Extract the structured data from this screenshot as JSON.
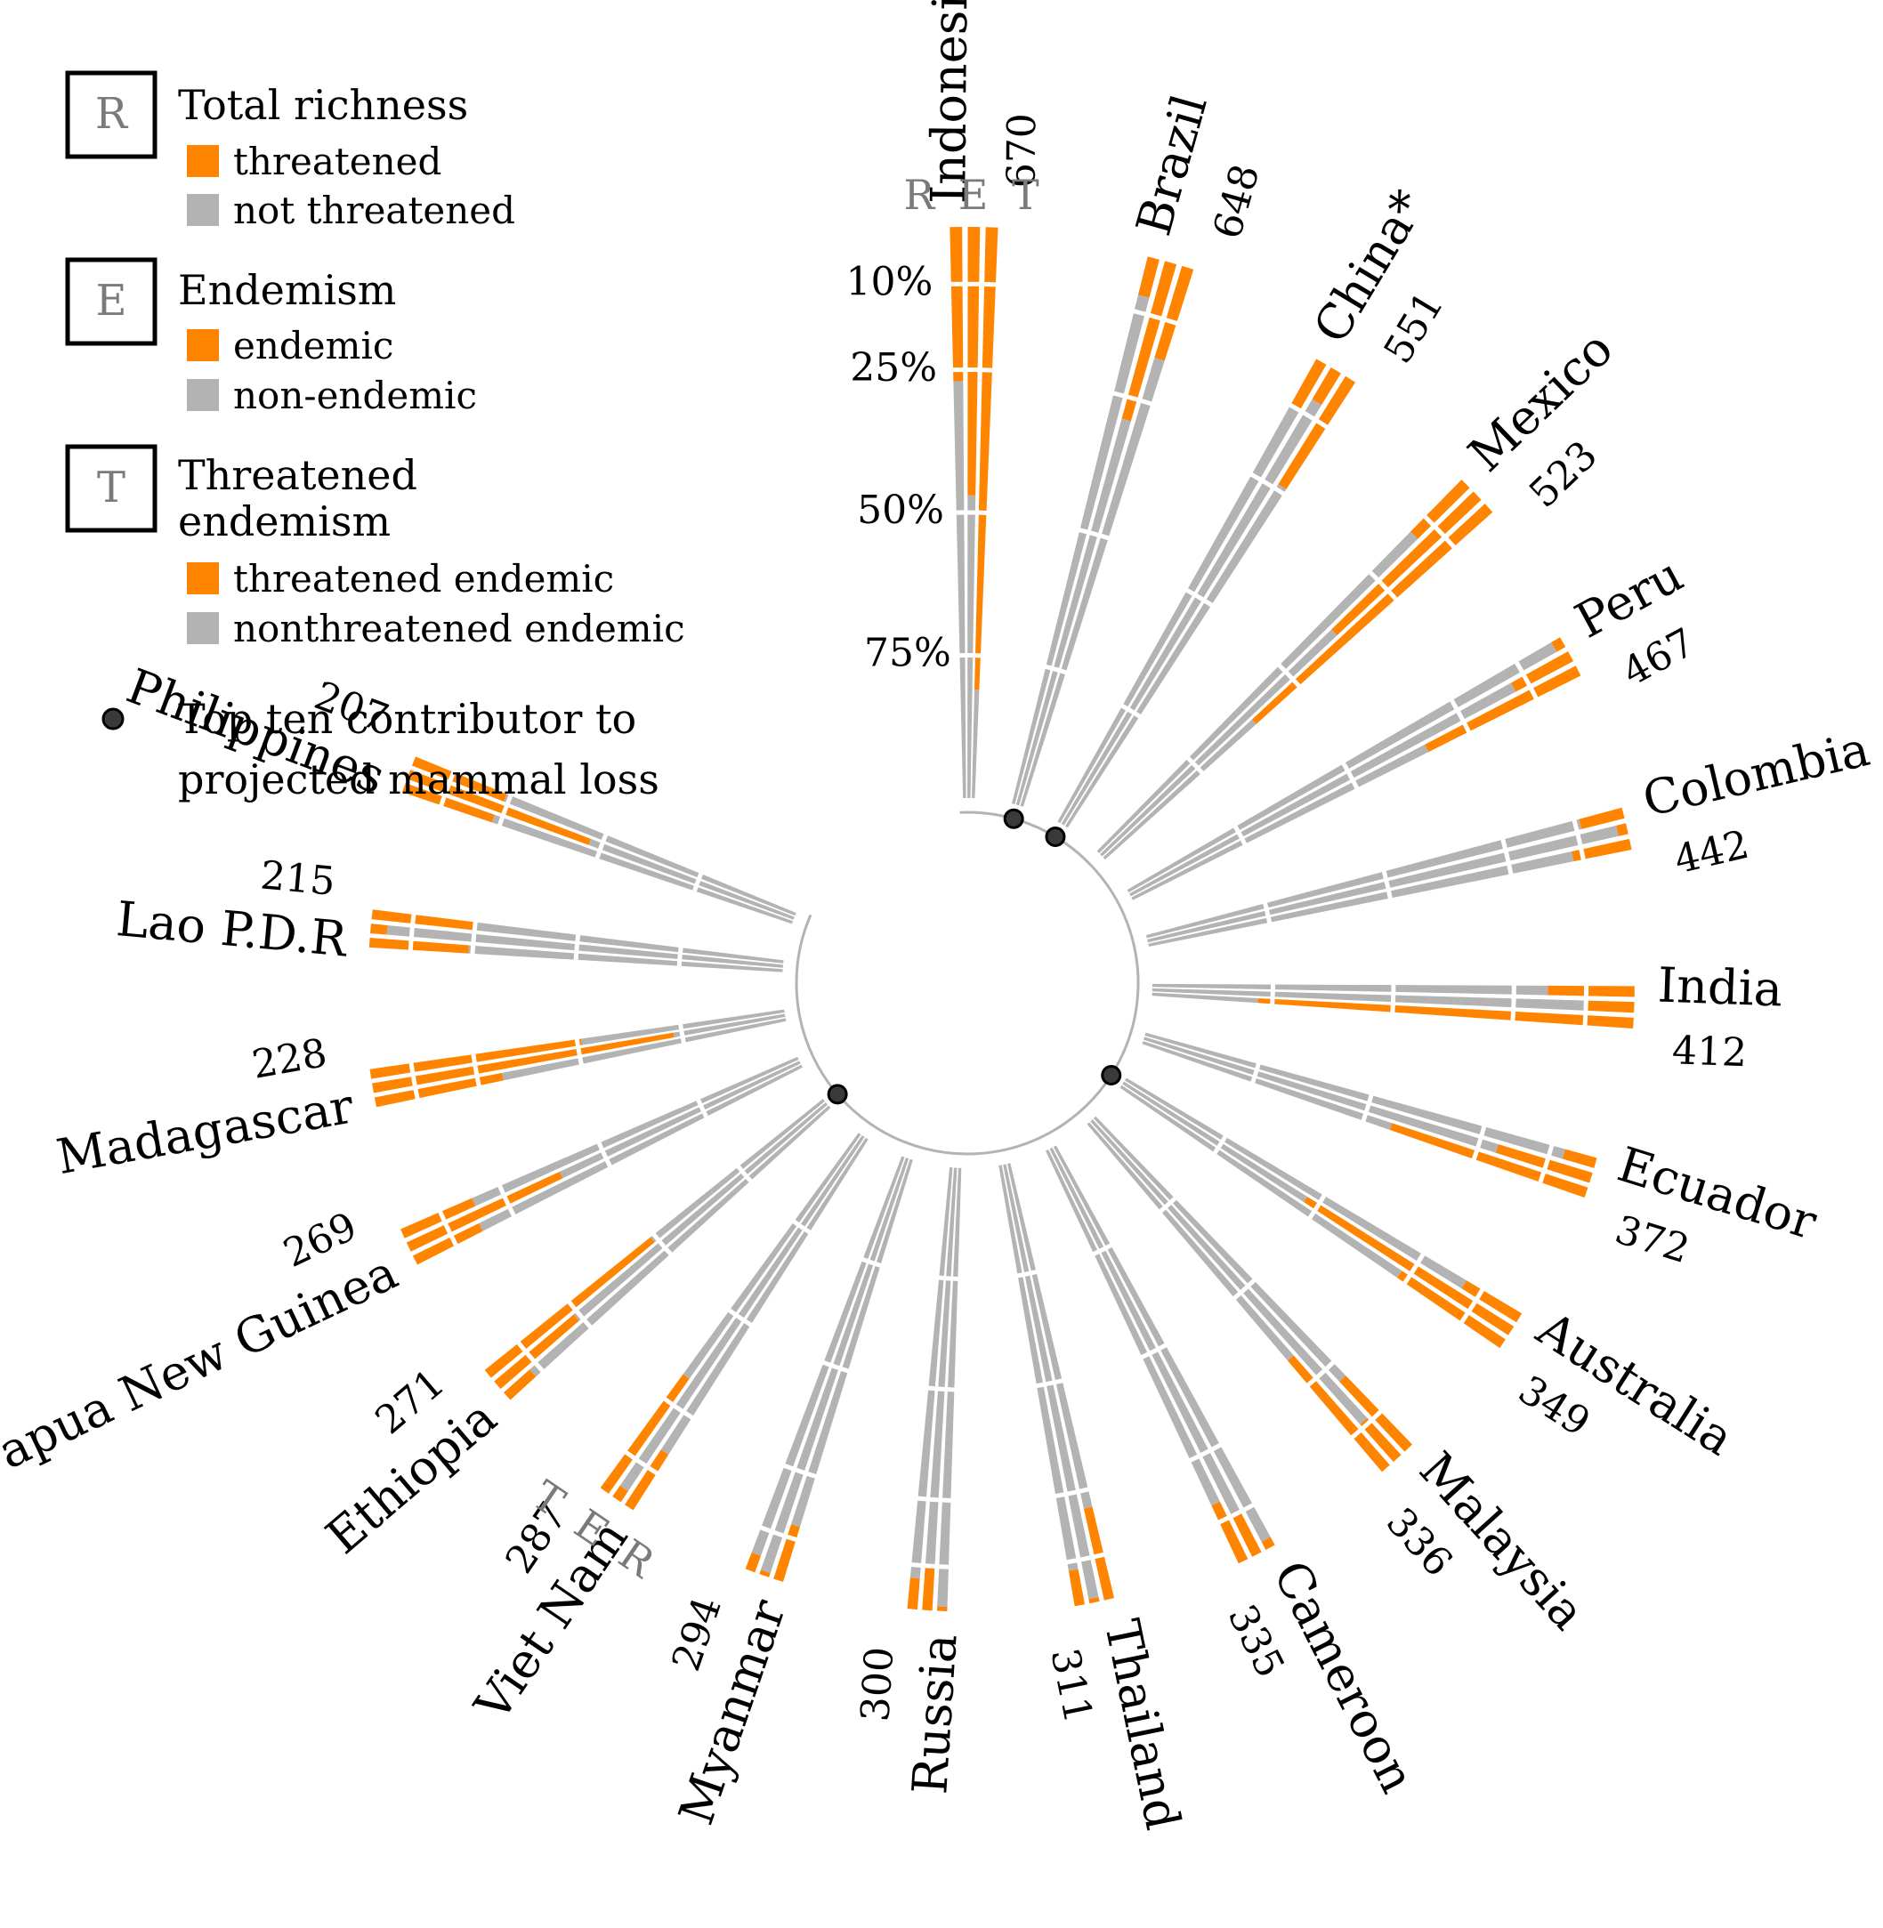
{
  "colors": {
    "highlight": "#ff8400",
    "base": "#b3b3b3",
    "legend_box_border": "#000000",
    "legend_letter": "#7a7a7a",
    "center_circle": "#b3b3b3",
    "marker": "#3a3a3a"
  },
  "legend": {
    "groups": [
      {
        "letter": "R",
        "title": "Total richness",
        "items": [
          {
            "label": "threatened",
            "color": "#ff8400"
          },
          {
            "label": "not threatened",
            "color": "#b3b3b3"
          }
        ]
      },
      {
        "letter": "E",
        "title": "Endemism",
        "items": [
          {
            "label": "endemic",
            "color": "#ff8400"
          },
          {
            "label": "non-endemic",
            "color": "#b3b3b3"
          }
        ]
      },
      {
        "letter": "T",
        "title": "Threatened\nendemism",
        "items": [
          {
            "label": "threatened endemic",
            "color": "#ff8400"
          },
          {
            "label": "nonthreatened endemic",
            "color": "#b3b3b3"
          }
        ]
      }
    ],
    "marker_label": "Top ten contributor to\nprojected mammal loss"
  },
  "chart_data": {
    "type": "radial-stacked-bar",
    "bar_codes": [
      "R",
      "E",
      "T"
    ],
    "bar_code_names": {
      "R": "Total richness",
      "E": "Endemism",
      "T": "Threatened endemism"
    },
    "percent_scale": {
      "ticks": [
        {
          "label": "10%",
          "value": 10
        },
        {
          "label": "25%",
          "value": 25
        },
        {
          "label": "50%",
          "value": 50
        },
        {
          "label": "75%",
          "value": 75
        }
      ],
      "max": 100
    },
    "group_labels_top": "R E T",
    "group_labels_bottom": "T E R",
    "countries": [
      {
        "name": "Indonesia",
        "count": "670",
        "R": 27,
        "E": 47,
        "T": 81,
        "top_ten": false
      },
      {
        "name": "Brazil",
        "count": "648",
        "R": 7,
        "E": 29,
        "T": 17,
        "top_ten": true
      },
      {
        "name": "China*",
        "count": "551",
        "R": 10,
        "E": 7,
        "T": 24,
        "top_ten": true
      },
      {
        "name": "Mexico",
        "count": "523",
        "R": 14,
        "E": 38,
        "T": 61,
        "top_ten": false
      },
      {
        "name": "Peru",
        "count": "467",
        "R": 2,
        "E": 13,
        "T": 34,
        "top_ten": false
      },
      {
        "name": "Colombia",
        "count": "442",
        "R": 9,
        "E": 2,
        "T": 12,
        "top_ten": false
      },
      {
        "name": "India",
        "count": "412",
        "R": 18,
        "E": 10,
        "T": 78,
        "top_ten": false
      },
      {
        "name": "Ecuador",
        "count": "372",
        "R": 7,
        "E": 21,
        "T": 44,
        "top_ten": false
      },
      {
        "name": "Australia",
        "count": "349",
        "R": 14,
        "E": 53,
        "T": 27,
        "top_ten": true
      },
      {
        "name": "Malaysia",
        "count": "336",
        "R": 21,
        "E": 11,
        "T": 32,
        "top_ten": false
      },
      {
        "name": "Cameroon",
        "count": "335",
        "R": 2,
        "E": 10,
        "T": 14,
        "top_ten": false
      },
      {
        "name": "Thailand",
        "count": "311",
        "R": 21,
        "E": 1,
        "T": 8,
        "top_ten": false
      },
      {
        "name": "Russia",
        "count": "300",
        "R": 1,
        "E": 10,
        "T": 7,
        "top_ten": false
      },
      {
        "name": "Myanmar",
        "count": "294",
        "R": 13,
        "E": 1,
        "T": 4,
        "top_ten": false
      },
      {
        "name": "Viet Nam",
        "count": "287",
        "R": 15,
        "E": 3,
        "T": 32,
        "top_ten": false
      },
      {
        "name": "Ethiopia",
        "count": "271",
        "R": 8,
        "E": 24,
        "T": 49,
        "top_ten": true
      },
      {
        "name": "Papua New Guinea",
        "count": "269",
        "R": 17,
        "E": 39,
        "T": 18,
        "top_ten": false
      },
      {
        "name": "Madagascar",
        "count": "228",
        "R": 31,
        "E": 73,
        "T": 51,
        "top_ten": false
      },
      {
        "name": "Lao P.D.R",
        "count": "215",
        "R": 24,
        "E": 4,
        "T": 25,
        "top_ten": false
      },
      {
        "name": "Philippines",
        "count": "207",
        "R": 23,
        "E": 47,
        "T": 24,
        "top_ten": false
      }
    ]
  }
}
